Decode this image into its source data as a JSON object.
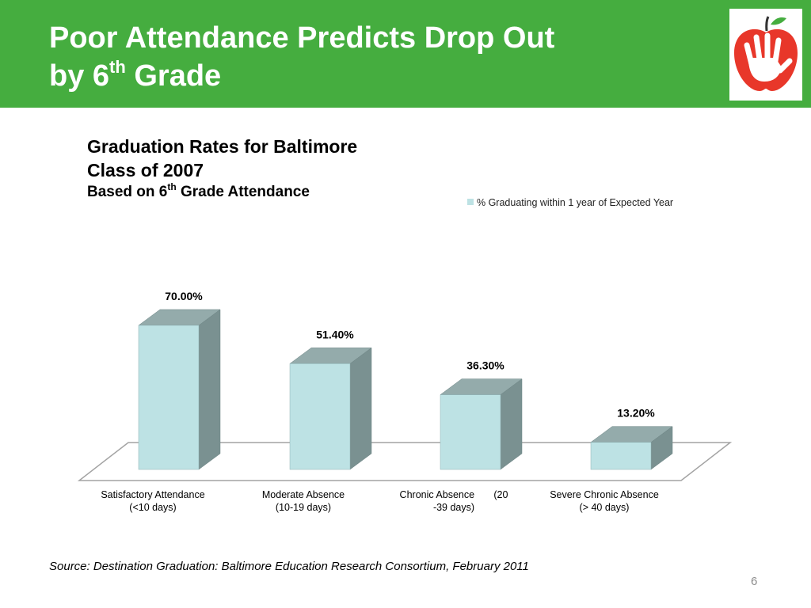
{
  "slide": {
    "title_line1": "Poor Attendance Predicts Drop Out",
    "title_line2_pre": "by 6",
    "title_line2_sup": "th",
    "title_line2_post": " Grade",
    "logo_icon": "apple-hand-logo-icon",
    "source": "Source: Destination Graduation: Baltimore Education Research Consortium, February 2011",
    "page_number": "6",
    "colors": {
      "banner": "#45ad3f",
      "logo_apple": "#e8372a",
      "bar_front": "#bde2e4",
      "bar_side": "#7a9191",
      "bar_top": "#94abab"
    }
  },
  "chart_data": {
    "type": "bar",
    "style": "3d",
    "title_line1": "Graduation Rates for Baltimore",
    "title_line2": "Class of 2007",
    "subtitle_pre": "Based on 6",
    "subtitle_sup": "th",
    "subtitle_post": " Grade Attendance",
    "legend_position": "top-right",
    "categories": [
      {
        "line1": "Satisfactory Attendance",
        "line2": "(<10 days)"
      },
      {
        "line1": "Moderate Absence",
        "line2": "(10-19 days)"
      },
      {
        "line1": "Chronic Absence       (20",
        "line2": "-39 days)"
      },
      {
        "line1": "Severe Chronic Absence",
        "line2": "(> 40 days)"
      }
    ],
    "series": [
      {
        "name": "% Graduating within 1 year of Expected Year",
        "values": [
          70.0,
          51.4,
          36.3,
          13.2
        ],
        "data_labels": [
          "70.00%",
          "51.40%",
          "36.30%",
          "13.20%"
        ]
      }
    ],
    "ylim": [
      0,
      100
    ],
    "grid": false
  }
}
